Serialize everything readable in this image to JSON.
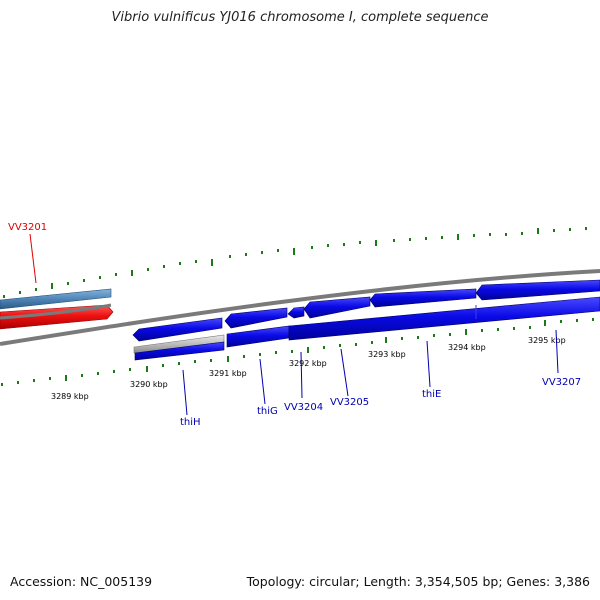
{
  "title": "Vibrio vulnificus YJ016 chromosome I, complete sequence",
  "accession": "Accession: NC_005139",
  "topology": "Topology: circular; Length: 3,354,505 bp; Genes: 3,386",
  "colors": {
    "backbone": "#7a7a7a",
    "tick": "#1a7a1a",
    "gene_blue": "#0a0ae6",
    "gene_red": "#ee1111",
    "gene_steel": "#4f86b8",
    "gene_grey": "#bdbdbd",
    "label_blue": "#0000b0",
    "label_red": "#dd0000"
  },
  "kbp_ticks": [
    "3289 kbp",
    "3290 kbp",
    "3291 kbp",
    "3292 kbp",
    "3293 kbp",
    "3294 kbp",
    "3295 kbp"
  ],
  "gene_labels": [
    {
      "text": "VV3201",
      "color": "red"
    },
    {
      "text": "thiH",
      "color": "blue"
    },
    {
      "text": "thiG",
      "color": "blue"
    },
    {
      "text": "VV3204",
      "color": "blue"
    },
    {
      "text": "VV3205",
      "color": "blue"
    },
    {
      "text": "thiE",
      "color": "blue"
    },
    {
      "text": "VV3207",
      "color": "blue"
    }
  ]
}
